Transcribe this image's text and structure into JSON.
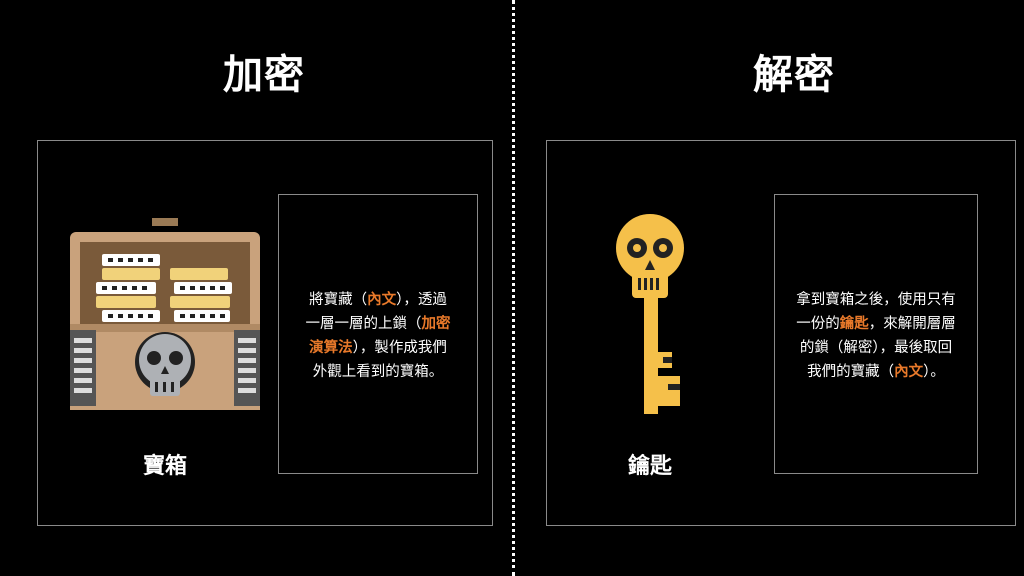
{
  "left": {
    "title": "加密",
    "caption": "寶箱",
    "icon": "treasure-chest-skull-icon",
    "desc": {
      "l1a": "將寶藏（",
      "l1b": "內文",
      "l1c": "），透過",
      "l2a": "一層一層的上鎖（",
      "l2b": "加密",
      "l3a": "演算法",
      "l3b": "），製作成我們",
      "l4": "外觀上看到的寶箱。"
    }
  },
  "right": {
    "title": "解密",
    "caption": "鑰匙",
    "icon": "skull-key-icon",
    "desc": {
      "l1": "拿到寶箱之後，使用只有",
      "l2a": "一份的",
      "l2b": "鑰匙",
      "l2c": "，來解開層層",
      "l3": "的鎖（解密），最後取回",
      "l4a": "我們的寶藏（",
      "l4b": "內文",
      "l4c": "）。"
    }
  },
  "colors": {
    "background": "#000000",
    "accent": "#e8792a",
    "border": "#8a8a8a",
    "key": "#f5c04a",
    "chest_wood": "#c9a27c",
    "chest_dark": "#7a5a3a",
    "skull_gray": "#aeb1b5"
  }
}
